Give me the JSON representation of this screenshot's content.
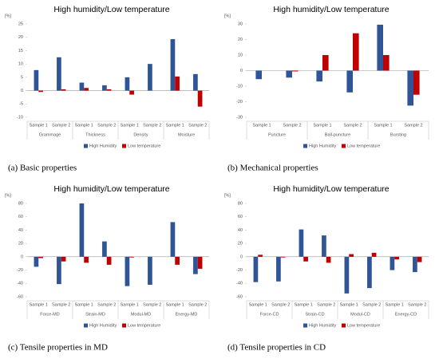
{
  "chart_data": [
    {
      "type": "bar",
      "title": "High humidity/Low temperature",
      "y_label": "[%]",
      "caption": "(a) Basic properties",
      "categories": [
        "Sample 1",
        "Sample 2",
        "Sample 1",
        "Sample 2",
        "Sample 1",
        "Sample 2",
        "Sample 1",
        "Sample 2"
      ],
      "groups": [
        "Grammage",
        "Thickness",
        "Density",
        "Moisture"
      ],
      "series": [
        {
          "name": "High Humidity",
          "color": "#2f5597",
          "values": [
            7.7,
            12.5,
            3,
            2,
            5,
            10,
            19.3,
            6.2
          ]
        },
        {
          "name": "Low temperature",
          "color": "#c00000",
          "values": [
            -0.5,
            0.5,
            1,
            0.5,
            -1.5,
            0,
            5.3,
            -6
          ]
        }
      ],
      "ylim": [
        -10,
        25
      ],
      "yticks": [
        -10,
        -5,
        0,
        5,
        10,
        15,
        20,
        25
      ]
    },
    {
      "type": "bar",
      "title": "High humidity/Low temperature",
      "y_label": "[%]",
      "caption": "(b) Mechanical properties",
      "categories": [
        "Sample 1",
        "Sample 2",
        "Sample 1",
        "Sample 2",
        "Sample 1",
        "Sample 2"
      ],
      "groups": [
        "Puncture",
        "Ball-puncture",
        "Bursting"
      ],
      "series": [
        {
          "name": "High Humidity",
          "color": "#2f5597",
          "values": [
            -5.5,
            -4.5,
            -7,
            -14,
            29.5,
            -22.5
          ]
        },
        {
          "name": "Low temperature",
          "color": "#c00000",
          "values": [
            0,
            -0.5,
            10,
            24,
            10,
            -15.5
          ]
        }
      ],
      "ylim": [
        -30,
        30
      ],
      "yticks": [
        -30,
        -20,
        -10,
        0,
        10,
        20,
        30
      ]
    },
    {
      "type": "bar",
      "title": "High humidity/Low temperature",
      "y_label": "[%]",
      "caption": "(c) Tensile properties in MD",
      "categories": [
        "Sample 1",
        "Sample 2",
        "Sample 1",
        "Sample 2",
        "Sample 1",
        "Sample 2",
        "Sample 1",
        "Sample 2"
      ],
      "groups": [
        "Force-MD",
        "Strain-MD",
        "Modul-MD",
        "Energy-MD"
      ],
      "series": [
        {
          "name": "High Humidity",
          "color": "#2f5597",
          "values": [
            -15,
            -41,
            80,
            23,
            -44,
            -42,
            52,
            -26
          ]
        },
        {
          "name": "Low temperature",
          "color": "#c00000",
          "values": [
            -2,
            -7,
            -9,
            -12,
            -1,
            0,
            -12,
            -18
          ]
        }
      ],
      "ylim": [
        -60,
        80
      ],
      "yticks": [
        -60,
        -40,
        -20,
        0,
        20,
        40,
        60,
        80
      ]
    },
    {
      "type": "bar",
      "title": "High humidity/Low temperature",
      "y_label": "[%]",
      "caption": "(d) Tensile properties in CD",
      "categories": [
        "Sample 1",
        "Sample 2",
        "Sample 1",
        "Sample 2",
        "Sample 1",
        "Sample 2",
        "Sample 1",
        "Sample 2"
      ],
      "groups": [
        "Force-CD",
        "Strain-CD",
        "Modul-CD",
        "Energy-CD"
      ],
      "series": [
        {
          "name": "High Humidity",
          "color": "#2f5597",
          "values": [
            -38,
            -37,
            41,
            32,
            -55,
            -47,
            -20,
            -23
          ]
        },
        {
          "name": "Low temperature",
          "color": "#c00000",
          "values": [
            3,
            -1,
            -7,
            -9,
            4,
            6,
            -4,
            -8
          ]
        }
      ],
      "ylim": [
        -60,
        80
      ],
      "yticks": [
        -60,
        -40,
        -20,
        0,
        20,
        40,
        60,
        80
      ]
    }
  ]
}
